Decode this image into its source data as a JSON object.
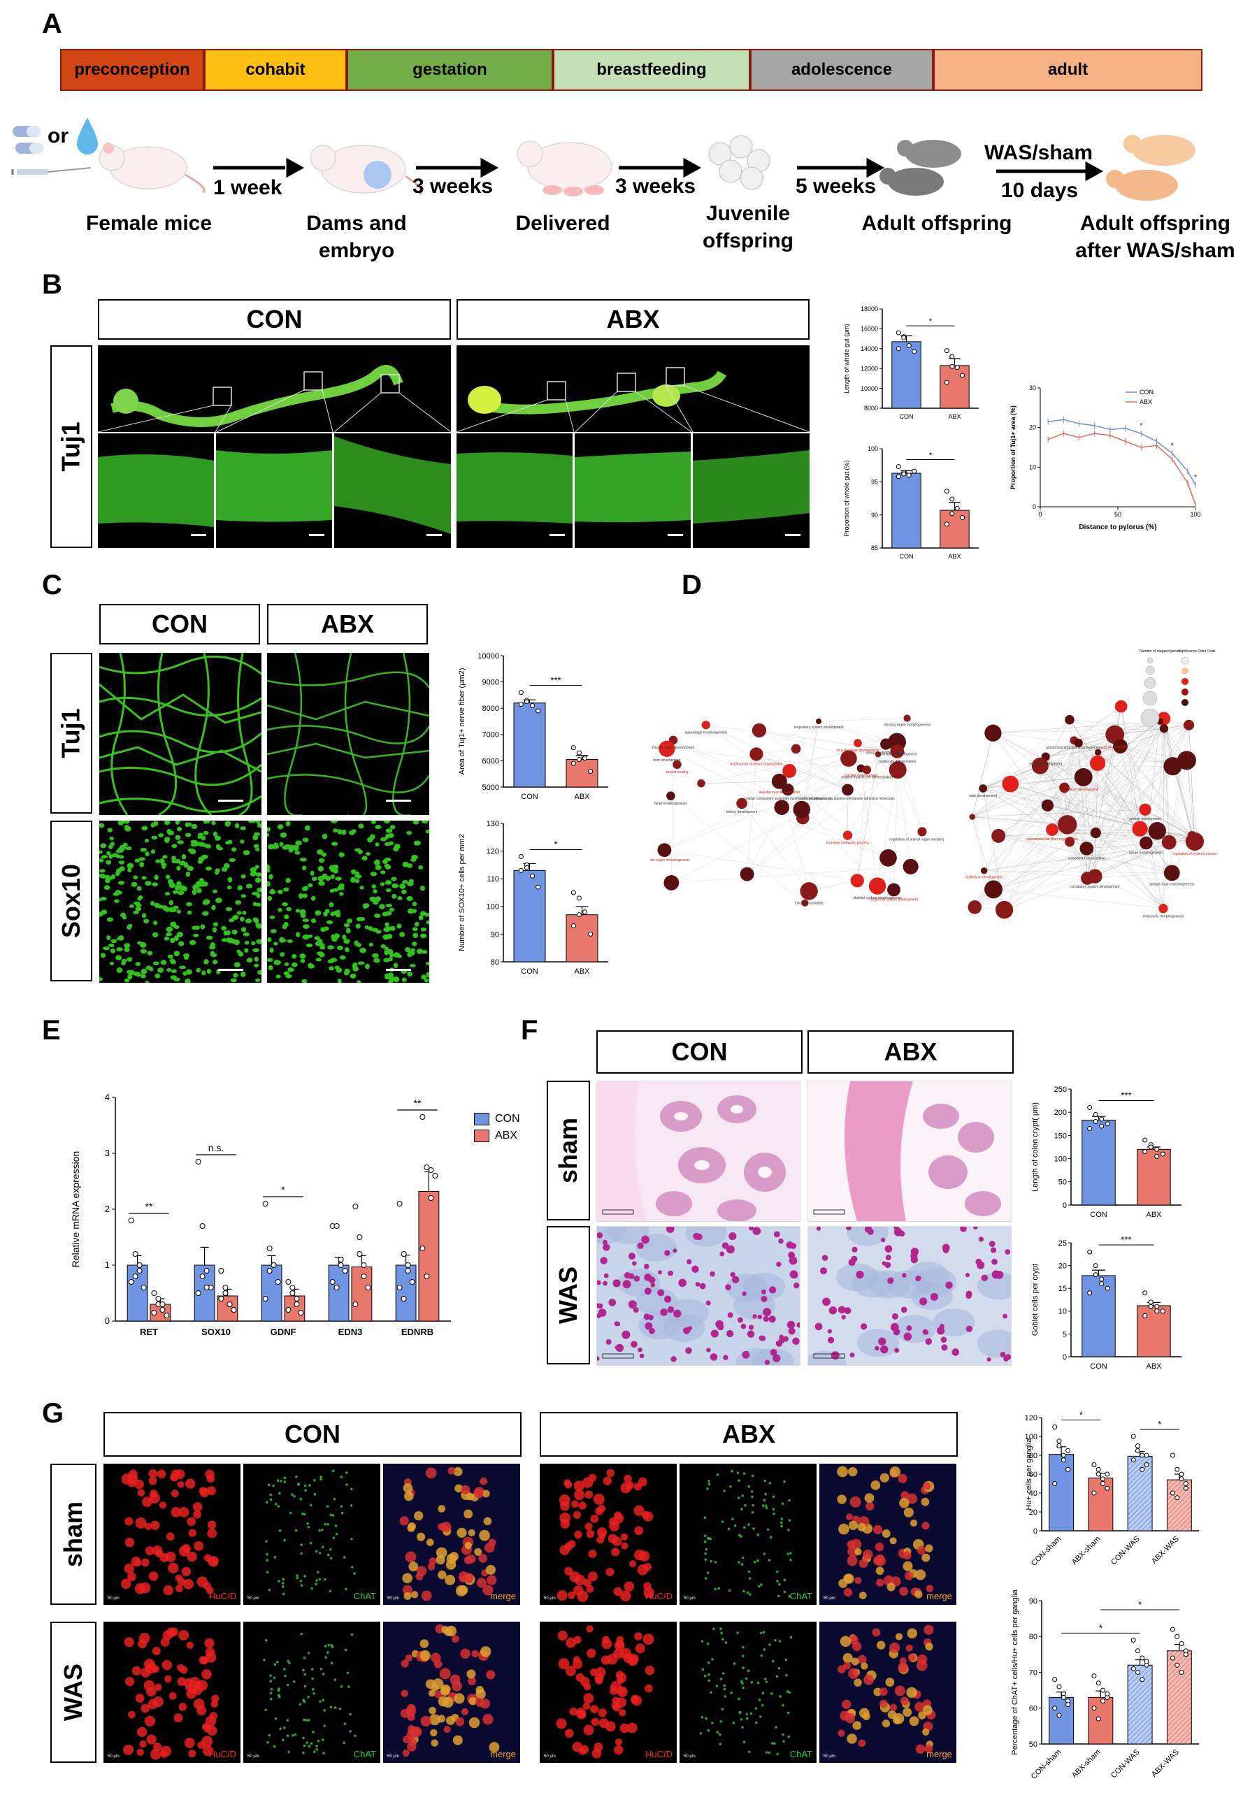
{
  "panels": {
    "A": "A",
    "B": "B",
    "C": "C",
    "D": "D",
    "E": "E",
    "F": "F",
    "G": "G"
  },
  "timeline": [
    {
      "label": "preconception",
      "color": "#d24614",
      "text": "#000000"
    },
    {
      "label": "cohabit",
      "color": "#fcbf12",
      "text": "#000000"
    },
    {
      "label": "gestation",
      "color": "#72ad47",
      "text": "#000000"
    },
    {
      "label": "breastfeeding",
      "color": "#c5e0b4",
      "text": "#000000"
    },
    {
      "label": "adolescence",
      "color": "#a6a6a6",
      "text": "#000000"
    },
    {
      "label": "adult",
      "color": "#f4b183",
      "text": "#000000"
    }
  ],
  "schematic": {
    "or": "or",
    "steps": [
      "Female mice",
      "Dams and\nembryo",
      "Delivered",
      "Juvenile\noffspring",
      "Adult offspring",
      "Adult offspring\nafter WAS/sham"
    ],
    "arrows": [
      "1 week",
      "3 weeks",
      "3 weeks",
      "5 weeks",
      "WAS/sham",
      "10 days"
    ]
  },
  "groups": {
    "con": "CON",
    "abx": "ABX"
  },
  "stains": {
    "tuj1": "Tuj1",
    "sox10": "Sox10",
    "sham": "sham",
    "was": "WAS"
  },
  "channels": {
    "huc": "HuC/D",
    "chat": "ChAT",
    "merge": "merge",
    "scale": "50 μm"
  },
  "colors": {
    "con": "#6f94e2",
    "abx": "#e8786c",
    "sig": "#000000"
  },
  "d_legend": {
    "title1": "Number of mapped genes",
    "title2": "Significance Color Code"
  },
  "d_terms_left": [
    "wound healing",
    "cell-cell adhesion via plasma-membrane adhesion molecules",
    "muscle cell differentiation",
    "hormone metabolic process",
    "renal tubule development",
    "regulation of animal organ morphogenesis",
    "cell fate development",
    "heart morphogenesis",
    "kidney development",
    "urogenital system development",
    "skeletal system morphogenesis",
    "cellular component assembly involved in morphogenesis",
    "muscle tissue development",
    "cardiocyte differentiation",
    "appendage morphogenesis",
    "embryonic organ morphogenesis",
    "sensory organ morphogenesis",
    "muscle organ development",
    "actomyosin structure organization",
    "respiratory system development",
    "striated muscle cell differentiation",
    "skeletal muscle adaptation",
    "myofibril assembly",
    "limb development"
  ],
  "d_terms_right": [
    "heart development",
    "tissue morphogenesis",
    "system development",
    "supramolecular fiber organization",
    "embryonic morphogenesis",
    "anatomical structure morphogenesis",
    "cell development",
    "animal organ morphogenesis",
    "embryo development",
    "regulation of system process",
    "circulatory system development",
    "tube development",
    "epithelium development",
    "component organization"
  ],
  "chart_data": [
    {
      "id": "B_length",
      "type": "bar",
      "categories": [
        "CON",
        "ABX"
      ],
      "values": [
        14700,
        12300
      ],
      "errors": [
        600,
        700
      ],
      "points": [
        [
          15600,
          15200,
          14300,
          13700,
          14000,
          15100
        ],
        [
          13800,
          13200,
          12100,
          11300,
          10600,
          12200
        ]
      ],
      "ylabel": "Length of whole gut (μm)",
      "ylim": [
        8000,
        18000
      ],
      "yticks": [
        8000,
        10000,
        12000,
        14000,
        16000,
        18000
      ],
      "sig": [
        {
          "from": 0,
          "to": 1,
          "label": "*"
        }
      ]
    },
    {
      "id": "B_prop",
      "type": "bar",
      "categories": [
        "CON",
        "ABX"
      ],
      "values": [
        96.3,
        90.7
      ],
      "errors": [
        0.4,
        1.2
      ],
      "points": [
        [
          97.3,
          96.4,
          96.0,
          96.6,
          95.8,
          96.2
        ],
        [
          93.6,
          92.4,
          91.0,
          89.6,
          88.6,
          90.2
        ]
      ],
      "ylabel": "Proportion of whole gut (%)",
      "ylim": [
        85,
        100
      ],
      "yticks": [
        85,
        90,
        95,
        100
      ],
      "sig": [
        {
          "from": 0,
          "to": 1,
          "label": "*"
        }
      ]
    },
    {
      "id": "B_line",
      "type": "line",
      "x": [
        5,
        15,
        25,
        35,
        45,
        55,
        65,
        75,
        85,
        95,
        100
      ],
      "series": [
        {
          "name": "CON",
          "values": [
            21.5,
            22,
            21,
            20.5,
            19.5,
            19.8,
            18.5,
            16.5,
            13.5,
            9,
            5.5
          ]
        },
        {
          "name": "ABX",
          "values": [
            17,
            18.5,
            17.5,
            18.5,
            18,
            16.5,
            15,
            15.5,
            12,
            6,
            0.5
          ]
        }
      ],
      "xlabel": "Distance to pylorus (%)",
      "ylabel": "Proportion of Tuj1+ area (%)",
      "xlim": [
        0,
        100
      ],
      "ylim": [
        0,
        30
      ],
      "yticks": [
        0,
        10,
        20,
        30
      ],
      "xticks": [
        0,
        50,
        100
      ],
      "stars": [
        {
          "x": 65,
          "label": "*"
        },
        {
          "x": 85,
          "label": "*"
        },
        {
          "x": 100,
          "label": "*"
        }
      ]
    },
    {
      "id": "C_area",
      "type": "bar",
      "categories": [
        "CON",
        "ABX"
      ],
      "values": [
        8200,
        6050
      ],
      "errors": [
        120,
        150
      ],
      "points": [
        [
          8600,
          8300,
          8100,
          7900,
          8150,
          8250
        ],
        [
          6500,
          6300,
          6100,
          5600,
          5900,
          6050
        ]
      ],
      "ylabel": "Area of Tuj1+ nerve fiber (μm2)",
      "ylim": [
        5000,
        10000
      ],
      "yticks": [
        5000,
        6000,
        7000,
        8000,
        9000,
        10000
      ],
      "sig": [
        {
          "from": 0,
          "to": 1,
          "label": "***"
        }
      ]
    },
    {
      "id": "C_sox10",
      "type": "bar",
      "categories": [
        "CON",
        "ABX"
      ],
      "values": [
        113,
        97
      ],
      "errors": [
        2.5,
        3
      ],
      "points": [
        [
          118,
          115,
          111,
          107,
          113,
          114
        ],
        [
          105,
          103,
          98,
          90,
          93,
          97
        ]
      ],
      "ylabel": "Number of SOX10+ cells per mm2",
      "ylim": [
        80,
        130
      ],
      "yticks": [
        80,
        90,
        100,
        110,
        120,
        130
      ],
      "sig": [
        {
          "from": 0,
          "to": 1,
          "label": "*"
        }
      ]
    },
    {
      "id": "E",
      "type": "bar",
      "categories": [
        "RET",
        "SOX10",
        "GDNF",
        "EDN3",
        "EDNRB"
      ],
      "series": [
        {
          "name": "CON",
          "values": [
            1.0,
            1.0,
            1.0,
            1.0,
            1.0
          ],
          "errors": [
            0.17,
            0.32,
            0.17,
            0.14,
            0.18
          ]
        },
        {
          "name": "ABX",
          "values": [
            0.3,
            0.45,
            0.45,
            0.97,
            2.32
          ],
          "errors": [
            0.1,
            0.12,
            0.12,
            0.2,
            0.35
          ]
        }
      ],
      "points": [
        [
          [
            1.8,
            1.2,
            1.0,
            0.6,
            0.7,
            0.8,
            0.9
          ],
          [
            0.5,
            0.3,
            0.2,
            0.1,
            0.15,
            0.4,
            0.3
          ]
        ],
        [
          [
            2.85,
            1.7,
            0.9,
            0.6,
            0.5,
            0.8,
            0.6
          ],
          [
            0.9,
            0.5,
            0.3,
            0.2,
            0.4,
            0.6,
            0.3
          ]
        ],
        [
          [
            2.1,
            1.3,
            1.0,
            0.7,
            0.4,
            0.9,
            1.0
          ],
          [
            0.7,
            0.5,
            0.3,
            0.15,
            0.2,
            0.6,
            0.4
          ]
        ],
        [
          [
            1.7,
            1.7,
            1.1,
            0.9,
            0.7,
            0.6,
            1.0
          ],
          [
            2.05,
            1.5,
            1.0,
            0.6,
            0.3,
            1.2,
            0.8
          ]
        ],
        [
          [
            2.1,
            1.2,
            0.9,
            0.7,
            0.6,
            0.4,
            1.0
          ],
          [
            3.65,
            2.75,
            2.7,
            2.6,
            1.3,
            0.8,
            2.2
          ]
        ]
      ],
      "ylabel": "Relative mRNA expression",
      "ylim": [
        0,
        4
      ],
      "yticks": [
        0,
        1,
        2,
        3,
        4
      ],
      "legend": "top-right",
      "sig": [
        {
          "cat": 0,
          "label": "**"
        },
        {
          "cat": 1,
          "label": "n.s."
        },
        {
          "cat": 2,
          "label": "*"
        },
        {
          "cat": 4,
          "label": "**"
        }
      ]
    },
    {
      "id": "F_crypt",
      "type": "bar",
      "categories": [
        "CON",
        "ABX"
      ],
      "values": [
        183,
        120
      ],
      "errors": [
        8,
        5
      ],
      "points": [
        [
          210,
          195,
          185,
          175,
          165,
          180,
          170
        ],
        [
          140,
          130,
          120,
          110,
          115,
          125,
          105
        ]
      ],
      "ylabel": "Length of colon crypt( μm)",
      "ylim": [
        0,
        250
      ],
      "yticks": [
        0,
        50,
        100,
        150,
        200,
        250
      ],
      "sig": [
        {
          "from": 0,
          "to": 1,
          "label": "***"
        }
      ]
    },
    {
      "id": "F_goblet",
      "type": "bar",
      "categories": [
        "CON",
        "ABX"
      ],
      "values": [
        17.8,
        11.2
      ],
      "errors": [
        1.2,
        0.7
      ],
      "points": [
        [
          23,
          20,
          17,
          15,
          14,
          18,
          16
        ],
        [
          14,
          12,
          11,
          10,
          9,
          11,
          10
        ]
      ],
      "ylabel": "Goblet cells per crypt",
      "ylim": [
        0,
        25
      ],
      "yticks": [
        0,
        5,
        10,
        15,
        20,
        25
      ],
      "sig": [
        {
          "from": 0,
          "to": 1,
          "label": "***"
        }
      ]
    },
    {
      "id": "G_hu",
      "type": "bar",
      "categories": [
        "CON-sham",
        "ABX-sham",
        "CON-WAS",
        "ABX-WAS"
      ],
      "values": [
        81,
        56,
        79,
        54
      ],
      "errors": [
        8,
        5,
        5,
        6
      ],
      "points": [
        [
          110,
          95,
          80,
          65,
          50,
          90,
          75,
          85
        ],
        [
          70,
          60,
          55,
          45,
          40,
          65,
          50,
          60
        ],
        [
          100,
          90,
          80,
          70,
          75,
          85,
          65,
          80
        ],
        [
          80,
          65,
          55,
          45,
          40,
          35,
          60,
          50
        ]
      ],
      "ylabel": "Hu+ cells per ganglia",
      "ylim": [
        0,
        120
      ],
      "yticks": [
        0,
        20,
        40,
        60,
        80,
        100,
        120
      ],
      "sig": [
        {
          "from": 0,
          "to": 1,
          "label": "*"
        },
        {
          "from": 2,
          "to": 3,
          "label": "*"
        }
      ]
    },
    {
      "id": "G_chat",
      "type": "bar",
      "categories": [
        "CON-sham",
        "ABX-sham",
        "CON-WAS",
        "ABX-WAS"
      ],
      "values": [
        63,
        63,
        72,
        76
      ],
      "errors": [
        1.5,
        1.8,
        1.5,
        1.8
      ],
      "points": [
        [
          68,
          66,
          64,
          62,
          60,
          58,
          63,
          61
        ],
        [
          69,
          67,
          65,
          63,
          60,
          57,
          62,
          64
        ],
        [
          79,
          76,
          74,
          72,
          71,
          70,
          68,
          73
        ],
        [
          82,
          80,
          78,
          76,
          74,
          72,
          70,
          75
        ]
      ],
      "ylabel": "Percentage of ChAT+ cells/Hu+ cells per ganglia",
      "ylim": [
        50,
        90
      ],
      "yticks": [
        50,
        60,
        70,
        80,
        90
      ],
      "sig": [
        {
          "from": 0,
          "to": 2,
          "label": "*"
        },
        {
          "from": 1,
          "to": 3,
          "label": "*"
        }
      ]
    }
  ]
}
